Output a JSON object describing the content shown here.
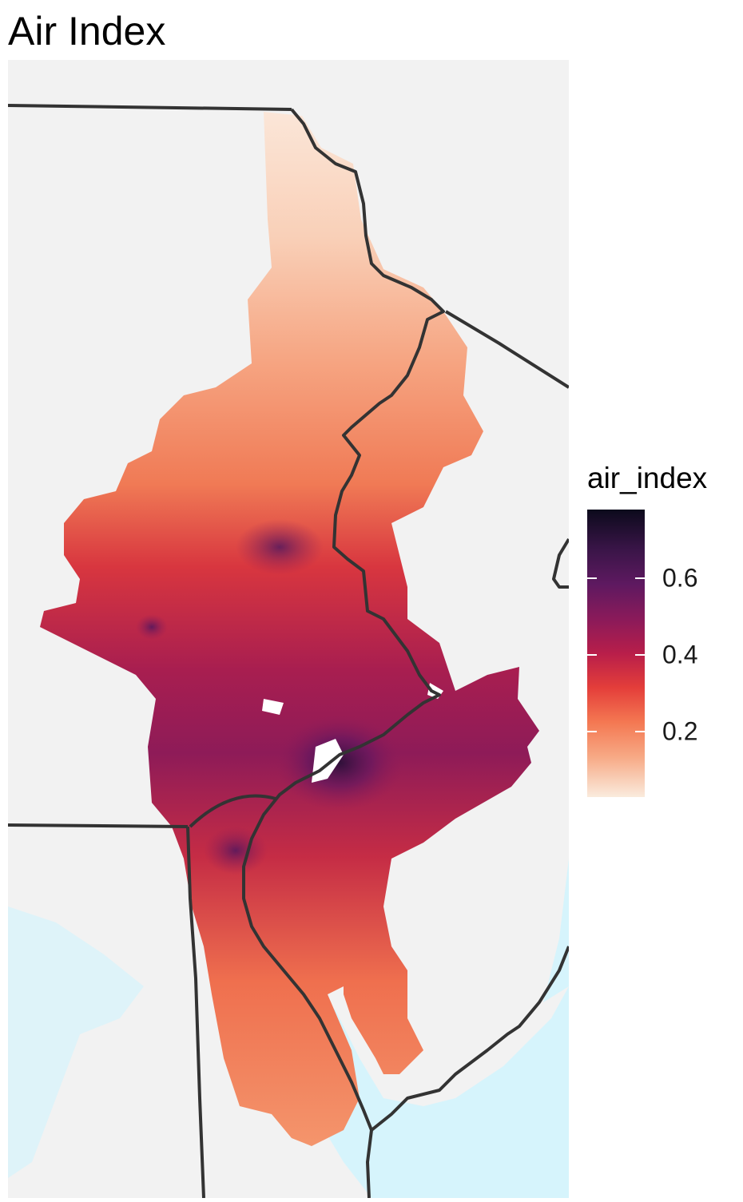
{
  "title": "Air Index",
  "legend": {
    "title": "air_index",
    "ticks": [
      {
        "label": "0.6",
        "value": 0.6
      },
      {
        "label": "0.4",
        "value": 0.4
      },
      {
        "label": "0.2",
        "value": 0.2
      }
    ],
    "range": [
      0.03,
      0.78
    ],
    "palette": [
      "#faebdd",
      "#f7a985",
      "#f47852",
      "#e43e3a",
      "#b81e4a",
      "#8a1a5a",
      "#5e1960",
      "#3a1548",
      "#0c0a1c"
    ]
  },
  "colors": {
    "background": "#f2f2f2",
    "water": "#d6f4fc",
    "border": "#333333"
  }
}
